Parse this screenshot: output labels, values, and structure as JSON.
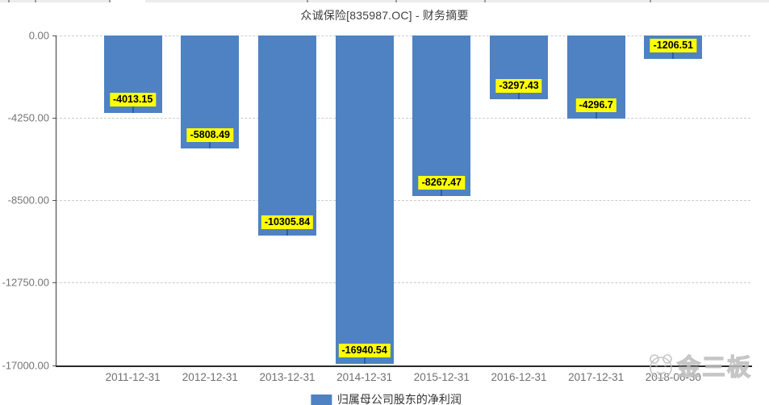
{
  "title": "众诚保险[835987.OC] - 财务摘要",
  "legend": {
    "label": "归属母公司股东的净利润",
    "swatch_color": "#4e82c2"
  },
  "watermark": {
    "text": "金三板",
    "logo": "panda-face-icon",
    "color": "#bdbdbd"
  },
  "colors": {
    "bar": "#4e82c2",
    "data_label_bg": "#ffff00",
    "data_label_text": "#000000",
    "pointer_line": "#2a5db0",
    "axis_line": "#333333",
    "gridline": "#cccccc",
    "tick_text": "#747474",
    "title_text": "#404040"
  },
  "chart_data": {
    "type": "bar",
    "title": "众诚保险[835987.OC] - 财务摘要",
    "categories": [
      "2011-12-31",
      "2012-12-31",
      "2013-12-31",
      "2014-12-31",
      "2015-12-31",
      "2016-12-31",
      "2017-12-31",
      "2018-06-30"
    ],
    "series": [
      {
        "name": "归属母公司股东的净利润",
        "values": [
          -4013.15,
          -5808.49,
          -10305.84,
          -16940.54,
          -8267.47,
          -3297.43,
          -4296.7,
          -1206.51
        ]
      }
    ],
    "data_labels": [
      "-4013.15",
      "-5808.49",
      "-10305.84",
      "-16940.54",
      "-8267.47",
      "-3297.43",
      "-4296.7",
      "-1206.51"
    ],
    "xlabel": "",
    "ylabel": "",
    "ylim": [
      -17000,
      0
    ],
    "yticks": [
      0,
      -4250,
      -8500,
      -12750,
      -17000
    ],
    "ytick_labels": [
      "0.00",
      "-4250.00",
      "-8500.00",
      "-12750.00",
      "-17000.00"
    ],
    "grid": "horizontal-dashed",
    "legend_position": "bottom-center"
  }
}
